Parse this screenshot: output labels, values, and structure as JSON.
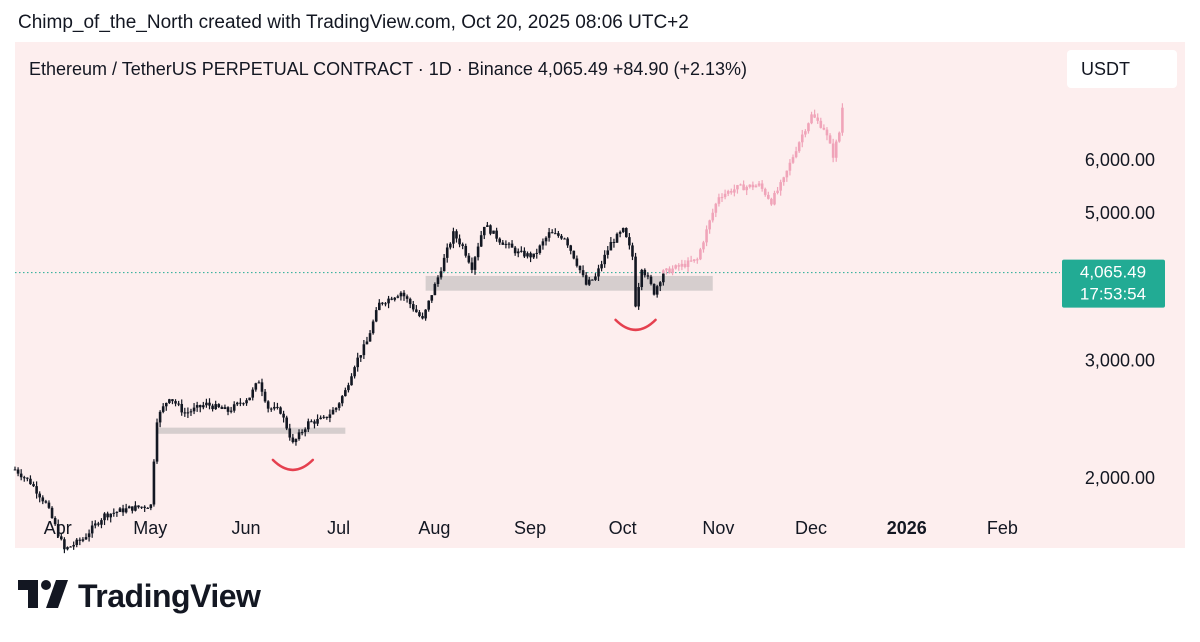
{
  "header": {
    "attribution": "Chimp_of_the_North created with TradingView.com, Oct 20, 2025 08:06 UTC+2",
    "symbol_line": "Ethereum / TetherUS PERPETUAL CONTRACT · 1D · Binance  4,065.49  +84.90 (+2.13%)",
    "currency": "USDT"
  },
  "price_badge": {
    "price": "4,065.49",
    "countdown": "17:53:54",
    "color": "#22ab94"
  },
  "footer": {
    "brand": "TradingView",
    "logo_icon": "tradingview-logo-icon"
  },
  "colors": {
    "candle": "#131722",
    "projection": "#f0a4b9",
    "zone": "#cfc8c8",
    "arc": "#e5404f",
    "panel": "#fdeeee"
  },
  "chart_data": {
    "type": "candlestick",
    "title": "Ethereum / TetherUS PERPETUAL CONTRACT · 1D · Binance",
    "ylim": [
      1650,
      7000
    ],
    "y_ticks": [
      "2,000.00",
      "3,000.00",
      "5,000.00",
      "6,000.00"
    ],
    "y_tick_values": [
      2000,
      3000,
      5000,
      6000
    ],
    "x_ticks": [
      "Apr",
      "May",
      "Jun",
      "Jul",
      "Aug",
      "Sep",
      "Oct",
      "Nov",
      "Dec",
      "2026",
      "Feb"
    ],
    "x_tick_dates": [
      "2025-04-01",
      "2025-05-01",
      "2025-06-01",
      "2025-07-01",
      "2025-08-01",
      "2025-09-01",
      "2025-10-01",
      "2025-11-01",
      "2025-12-01",
      "2026-01-01",
      "2026-02-01"
    ],
    "x_range": [
      "2025-03-24",
      "2026-02-19"
    ],
    "current_price": 4065.49,
    "price_path": [
      [
        "2025-03-24",
        2060
      ],
      [
        "2025-03-29",
        1970
      ],
      [
        "2025-04-03",
        1830
      ],
      [
        "2025-04-09",
        1560
      ],
      [
        "2025-04-15",
        1620
      ],
      [
        "2025-04-22",
        1760
      ],
      [
        "2025-04-30",
        1800
      ],
      [
        "2025-05-07",
        1820
      ],
      [
        "2025-05-09",
        2450
      ],
      [
        "2025-05-13",
        2650
      ],
      [
        "2025-05-18",
        2500
      ],
      [
        "2025-05-25",
        2580
      ],
      [
        "2025-06-01",
        2520
      ],
      [
        "2025-06-08",
        2650
      ],
      [
        "2025-06-11",
        2800
      ],
      [
        "2025-06-14",
        2550
      ],
      [
        "2025-06-18",
        2520
      ],
      [
        "2025-06-22",
        2250
      ],
      [
        "2025-06-27",
        2420
      ],
      [
        "2025-07-02",
        2450
      ],
      [
        "2025-07-06",
        2550
      ],
      [
        "2025-07-09",
        2700
      ],
      [
        "2025-07-12",
        2960
      ],
      [
        "2025-07-16",
        3200
      ],
      [
        "2025-07-20",
        3650
      ],
      [
        "2025-07-27",
        3800
      ],
      [
        "2025-08-01",
        3550
      ],
      [
        "2025-08-03",
        3450
      ],
      [
        "2025-08-08",
        4000
      ],
      [
        "2025-08-13",
        4650
      ],
      [
        "2025-08-16",
        4450
      ],
      [
        "2025-08-19",
        4150
      ],
      [
        "2025-08-23",
        4800
      ],
      [
        "2025-08-28",
        4550
      ],
      [
        "2025-09-03",
        4350
      ],
      [
        "2025-09-08",
        4300
      ],
      [
        "2025-09-13",
        4650
      ],
      [
        "2025-09-18",
        4600
      ],
      [
        "2025-09-22",
        4200
      ],
      [
        "2025-09-25",
        3900
      ],
      [
        "2025-09-28",
        4000
      ],
      [
        "2025-10-03",
        4500
      ],
      [
        "2025-10-07",
        4700
      ],
      [
        "2025-10-10",
        4300
      ],
      [
        "2025-10-11",
        3650
      ],
      [
        "2025-10-13",
        4150
      ],
      [
        "2025-10-17",
        3800
      ],
      [
        "2025-10-20",
        4065
      ]
    ],
    "projection_path": [
      [
        "2025-10-20",
        4065
      ],
      [
        "2025-10-25",
        4150
      ],
      [
        "2025-10-31",
        4250
      ],
      [
        "2025-11-03",
        4700
      ],
      [
        "2025-11-07",
        5300
      ],
      [
        "2025-11-13",
        5450
      ],
      [
        "2025-11-20",
        5500
      ],
      [
        "2025-11-24",
        5200
      ],
      [
        "2025-11-28",
        5600
      ],
      [
        "2025-12-03",
        6400
      ],
      [
        "2025-12-07",
        7000
      ],
      [
        "2025-12-11",
        6700
      ],
      [
        "2025-12-14",
        6100
      ],
      [
        "2025-12-16",
        6600
      ],
      [
        "2025-12-17",
        7200
      ]
    ],
    "support_zones": [
      {
        "from": "2025-05-09",
        "to": "2025-07-09",
        "price_range": [
          2330,
          2380
        ]
      },
      {
        "from": "2025-08-04",
        "to": "2025-11-05",
        "price_range": [
          3820,
          4020
        ]
      }
    ],
    "highlighted_lows": [
      "2025-06-22",
      "2025-10-11"
    ]
  }
}
